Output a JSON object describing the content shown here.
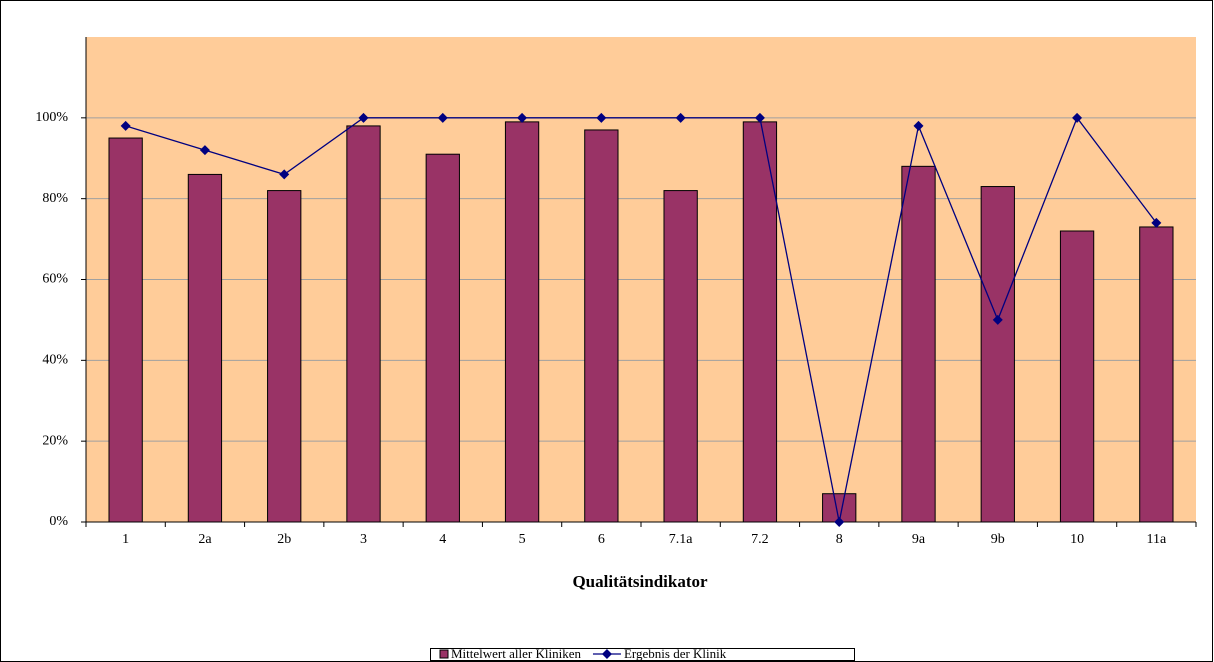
{
  "chart_data": {
    "type": "bar",
    "x_label": "Qualitätsindikator",
    "categories": [
      "1",
      "2a",
      "2b",
      "3",
      "4",
      "5",
      "6",
      "7.1a",
      "7.2",
      "8",
      "9a",
      "9b",
      "10",
      "11a"
    ],
    "series": [
      {
        "name": "Mittelwert aller Kliniken",
        "type": "bar",
        "color": "#993366",
        "values": [
          95,
          86,
          82,
          98,
          91,
          99,
          97,
          82,
          99,
          7,
          88,
          83,
          72,
          73
        ]
      },
      {
        "name": "Ergebnis der Klinik",
        "type": "line",
        "color": "#000080",
        "values": [
          98,
          92,
          86,
          100,
          100,
          100,
          100,
          100,
          100,
          0,
          98,
          50,
          100,
          74
        ]
      }
    ],
    "ylim": [
      0,
      120
    ],
    "yticks": [
      {
        "value": 0,
        "label": "0%"
      },
      {
        "value": 20,
        "label": "20%"
      },
      {
        "value": 40,
        "label": "40%"
      },
      {
        "value": 60,
        "label": "60%"
      },
      {
        "value": 80,
        "label": "80%"
      },
      {
        "value": 100,
        "label": "100%"
      }
    ],
    "grid": true,
    "background": "#ffcc99",
    "legend": "bottom"
  }
}
